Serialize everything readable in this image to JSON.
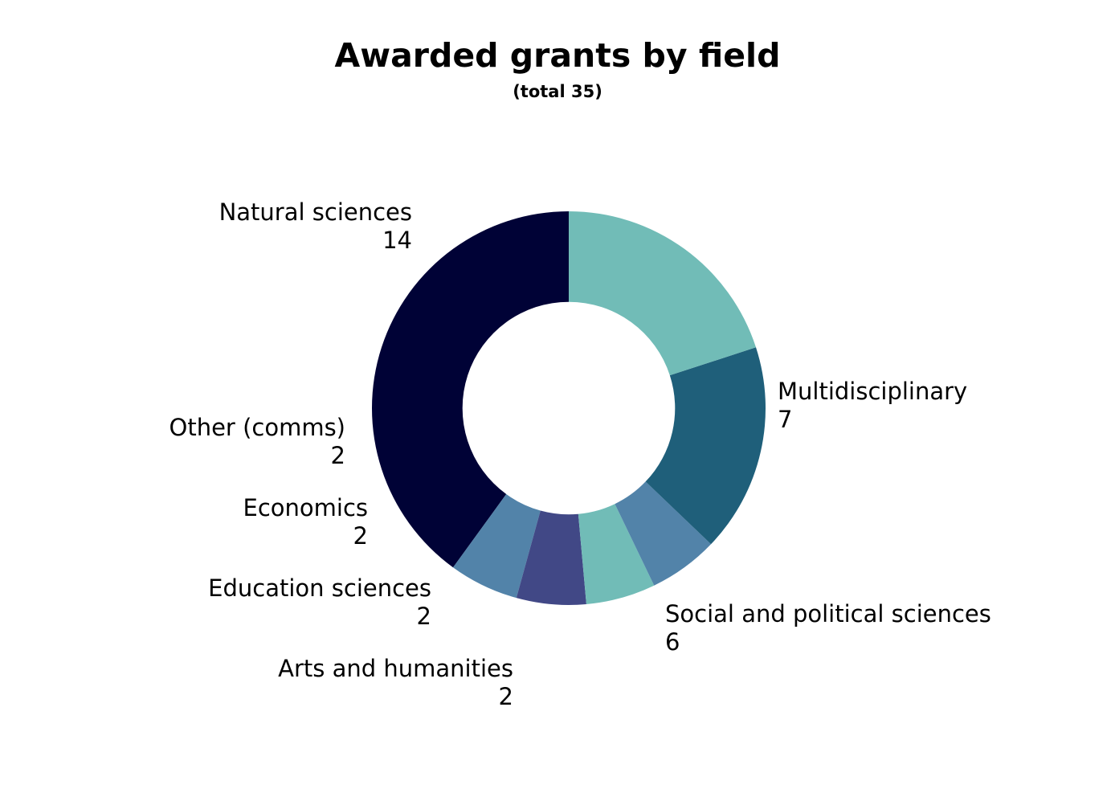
{
  "chart_data": {
    "type": "pie",
    "variant": "donut",
    "title": "Awarded grants by field",
    "subtitle": "(total 35)",
    "start_angle_deg": 270,
    "direction": "counterclockwise",
    "inner_radius_ratio": 0.54,
    "slices": [
      {
        "label": "Natural sciences",
        "value": 14,
        "color": "#000236"
      },
      {
        "label": "Other (comms)",
        "value": 2,
        "color": "#5283a9"
      },
      {
        "label": "Economics",
        "value": 2,
        "color": "#414886"
      },
      {
        "label": "Education sciences",
        "value": 2,
        "color": "#71bcb7"
      },
      {
        "label": "Arts and humanities",
        "value": 2,
        "color": "#5283a9"
      },
      {
        "label": "Social and political sciences",
        "value": 6,
        "color": "#1f5f7a"
      },
      {
        "label": "Multidisciplinary",
        "value": 7,
        "color": "#71bcb7"
      }
    ]
  }
}
